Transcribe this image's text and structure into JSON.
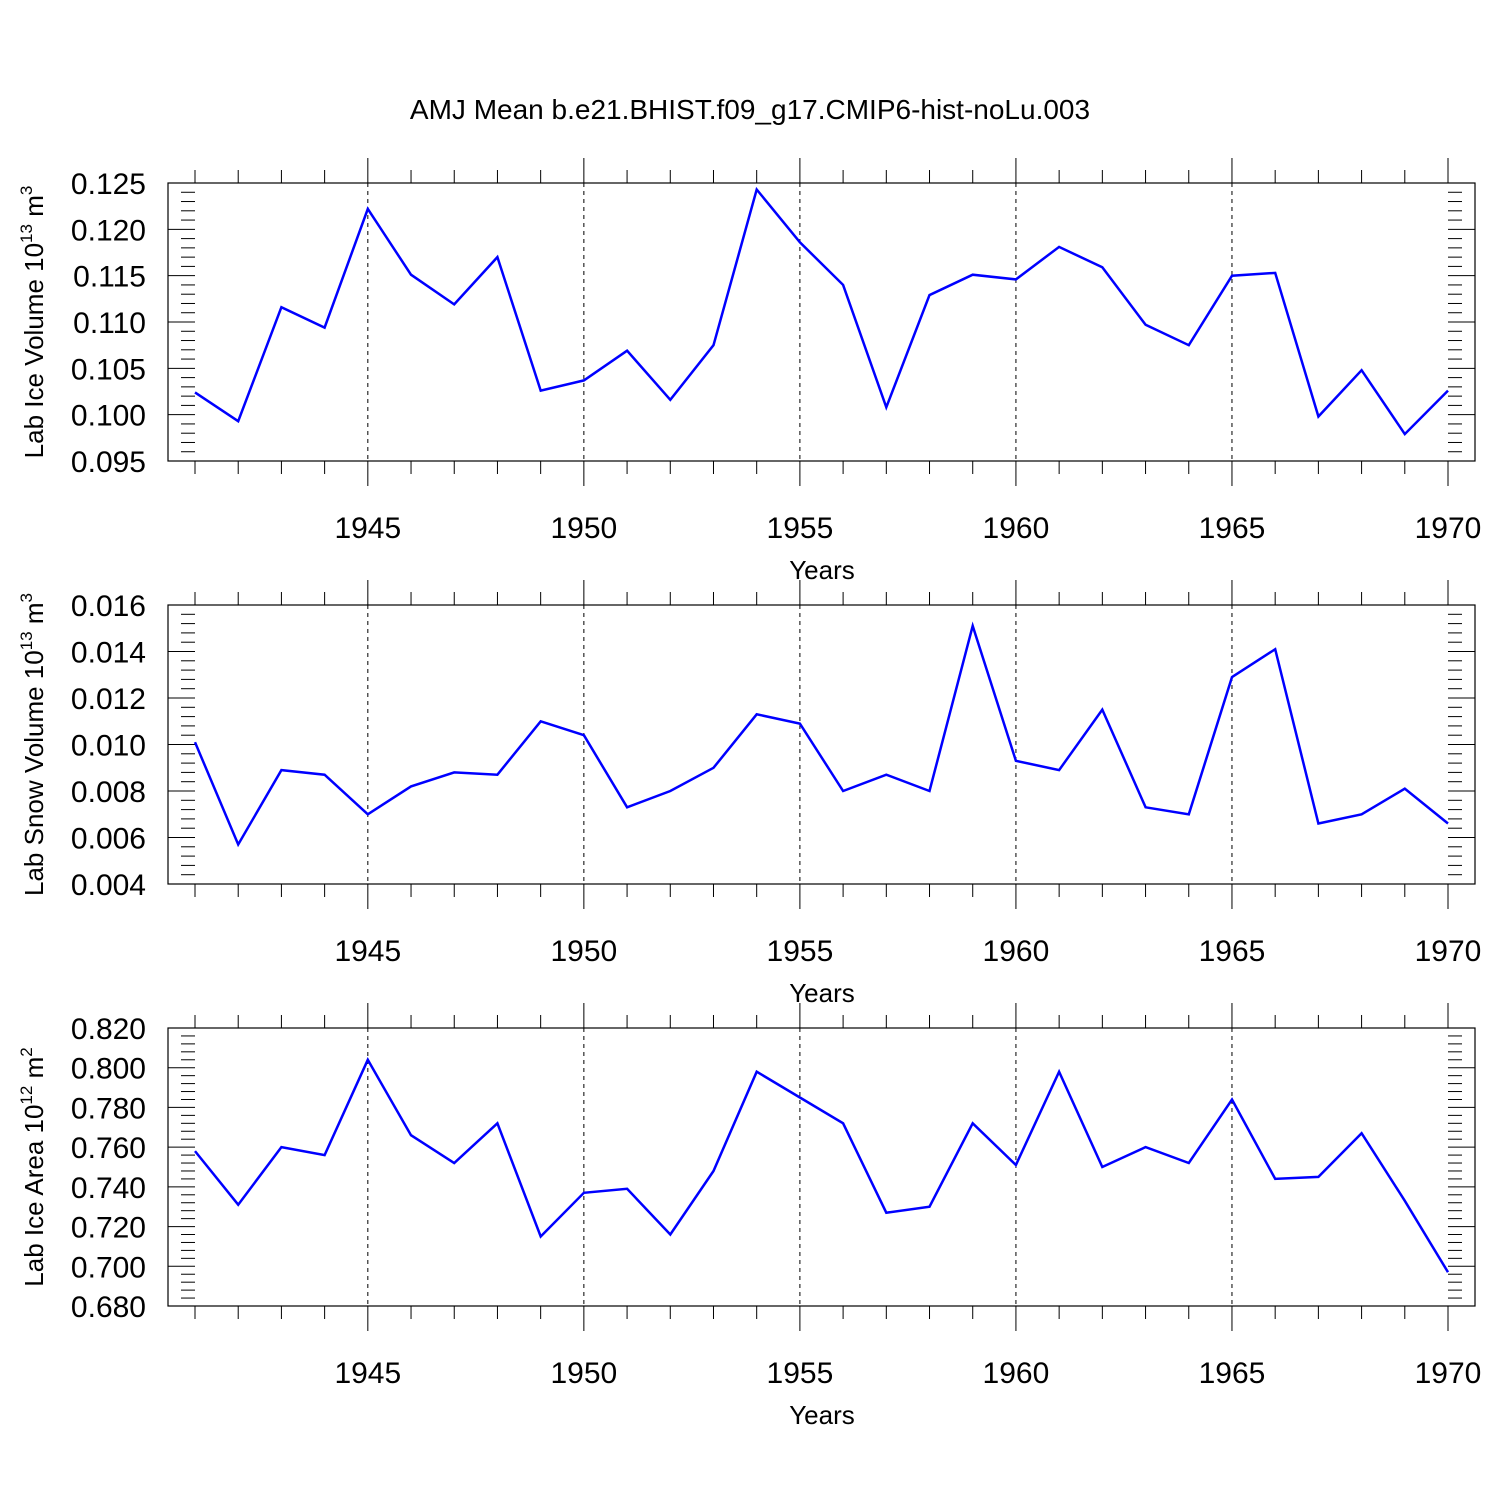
{
  "figure": {
    "title": "AMJ Mean b.e21.BHIST.f09_g17.CMIP6-hist-noLu.003"
  },
  "chart_data": [
    {
      "type": "line",
      "title": "AMJ Mean b.e21.BHIST.f09_g17.CMIP6-hist-noLu.003",
      "ylabel": "Lab Ice Volume 10",
      "ylabel_exp": "13",
      "ylabel_unit": " m",
      "ylabel_unit_exp": "3",
      "xlabel": "Years",
      "xlim": [
        1941,
        1970
      ],
      "ylim": [
        0.095,
        0.125
      ],
      "yticks": [
        0.095,
        0.1,
        0.105,
        0.11,
        0.115,
        0.12,
        0.125
      ],
      "ytick_labels": [
        "0.095",
        "0.100",
        "0.105",
        "0.110",
        "0.115",
        "0.120",
        "0.125"
      ],
      "xticks": [
        1945,
        1950,
        1955,
        1960,
        1965,
        1970
      ],
      "xtick_labels": [
        "1945",
        "1950",
        "1955",
        "1960",
        "1965",
        "1970"
      ],
      "grid": "vertical dashed at major ticks",
      "line_color": "#0000ff",
      "x": [
        1941,
        1942,
        1943,
        1944,
        1945,
        1946,
        1947,
        1948,
        1949,
        1950,
        1951,
        1952,
        1953,
        1954,
        1955,
        1956,
        1957,
        1958,
        1959,
        1960,
        1961,
        1962,
        1963,
        1964,
        1965,
        1966,
        1967,
        1968,
        1969,
        1970
      ],
      "values": [
        0.1024,
        0.0993,
        0.1116,
        0.1094,
        0.1222,
        0.1151,
        0.1119,
        0.117,
        0.1026,
        0.1037,
        0.1069,
        0.1016,
        0.1075,
        0.1243,
        0.1186,
        0.114,
        0.1008,
        0.1129,
        0.1151,
        0.1146,
        0.1181,
        0.1159,
        0.1097,
        0.1075,
        0.115,
        0.1153,
        0.0998,
        0.1048,
        0.0979,
        0.1026
      ]
    },
    {
      "type": "line",
      "ylabel": "Lab Snow Volume 10",
      "ylabel_exp": "13",
      "ylabel_unit": " m",
      "ylabel_unit_exp": "3",
      "xlabel": "Years",
      "xlim": [
        1941,
        1970
      ],
      "ylim": [
        0.004,
        0.016
      ],
      "yticks": [
        0.004,
        0.006,
        0.008,
        0.01,
        0.012,
        0.014,
        0.016
      ],
      "ytick_labels": [
        "0.004",
        "0.006",
        "0.008",
        "0.010",
        "0.012",
        "0.014",
        "0.016"
      ],
      "xticks": [
        1945,
        1950,
        1955,
        1960,
        1965,
        1970
      ],
      "xtick_labels": [
        "1945",
        "1950",
        "1955",
        "1960",
        "1965",
        "1970"
      ],
      "grid": "vertical dashed at major ticks",
      "line_color": "#0000ff",
      "x": [
        1941,
        1942,
        1943,
        1944,
        1945,
        1946,
        1947,
        1948,
        1949,
        1950,
        1951,
        1952,
        1953,
        1954,
        1955,
        1956,
        1957,
        1958,
        1959,
        1960,
        1961,
        1962,
        1963,
        1964,
        1965,
        1966,
        1967,
        1968,
        1969,
        1970
      ],
      "values": [
        0.0101,
        0.0057,
        0.0089,
        0.0087,
        0.007,
        0.0082,
        0.0088,
        0.0087,
        0.011,
        0.0104,
        0.0073,
        0.008,
        0.009,
        0.0113,
        0.0109,
        0.008,
        0.0087,
        0.008,
        0.0151,
        0.0093,
        0.0089,
        0.0115,
        0.0073,
        0.007,
        0.0129,
        0.0141,
        0.0066,
        0.007,
        0.0081,
        0.0066
      ]
    },
    {
      "type": "line",
      "ylabel": "Lab Ice Area 10",
      "ylabel_exp": "12",
      "ylabel_unit": " m",
      "ylabel_unit_exp": "2",
      "xlabel": "Years",
      "xlim": [
        1941,
        1970
      ],
      "ylim": [
        0.68,
        0.82
      ],
      "yticks": [
        0.68,
        0.7,
        0.72,
        0.74,
        0.76,
        0.78,
        0.8,
        0.82
      ],
      "ytick_labels": [
        "0.680",
        "0.700",
        "0.720",
        "0.740",
        "0.760",
        "0.780",
        "0.800",
        "0.820"
      ],
      "xticks": [
        1945,
        1950,
        1955,
        1960,
        1965,
        1970
      ],
      "xtick_labels": [
        "1945",
        "1950",
        "1955",
        "1960",
        "1965",
        "1970"
      ],
      "grid": "vertical dashed at major ticks",
      "line_color": "#0000ff",
      "x": [
        1941,
        1942,
        1943,
        1944,
        1945,
        1946,
        1947,
        1948,
        1949,
        1950,
        1951,
        1952,
        1953,
        1954,
        1955,
        1956,
        1957,
        1958,
        1959,
        1960,
        1961,
        1962,
        1963,
        1964,
        1965,
        1966,
        1967,
        1968,
        1969,
        1970
      ],
      "values": [
        0.758,
        0.731,
        0.76,
        0.756,
        0.804,
        0.766,
        0.752,
        0.772,
        0.715,
        0.737,
        0.739,
        0.716,
        0.748,
        0.798,
        0.785,
        0.772,
        0.727,
        0.73,
        0.772,
        0.751,
        0.798,
        0.75,
        0.76,
        0.752,
        0.784,
        0.744,
        0.745,
        0.767,
        0.733,
        0.697
      ]
    }
  ]
}
